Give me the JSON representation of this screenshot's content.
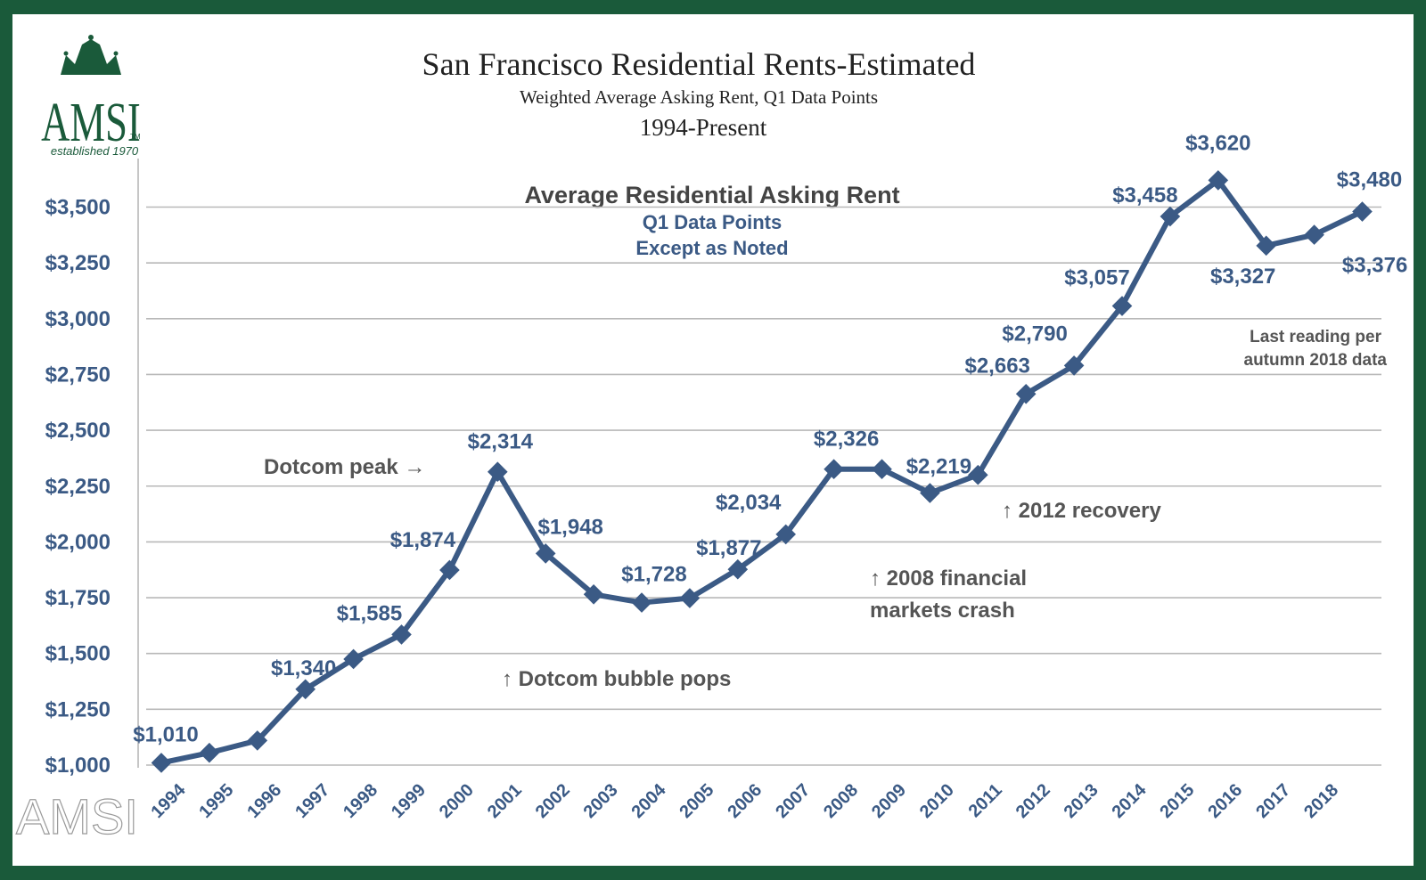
{
  "header": {
    "title": "San Francisco Residential Rents-Estimated",
    "subtitle": "Weighted Average Asking Rent, Q1 Data Points",
    "period": "1994-Present"
  },
  "logo": {
    "text": "AMSI",
    "tm": "TM",
    "tagline": "established 1970",
    "watermark": "AMSI",
    "icon": "crown-icon"
  },
  "colors": {
    "frame": "#1a5a3a",
    "line": "#3b5a85",
    "label": "#3b5a85",
    "annotation": "#555555",
    "grid": "#b8b8b8",
    "logo": "#1a5a3a"
  },
  "chart_data": {
    "type": "line",
    "title": "Average Residential Asking Rent",
    "subtitle": [
      "Q1 Data Points",
      "Except as Noted"
    ],
    "xlabel": "",
    "ylabel": "",
    "ylim": [
      1000,
      3600
    ],
    "grid": true,
    "yticks": [
      {
        "value": 1000,
        "label": "$1,000"
      },
      {
        "value": 1250,
        "label": "$1,250"
      },
      {
        "value": 1500,
        "label": "$1,500"
      },
      {
        "value": 1750,
        "label": "$1,750"
      },
      {
        "value": 2000,
        "label": "$2,000"
      },
      {
        "value": 2250,
        "label": "$2,250"
      },
      {
        "value": 2500,
        "label": "$2,500"
      },
      {
        "value": 2750,
        "label": "$2,750"
      },
      {
        "value": 3000,
        "label": "$3,000"
      },
      {
        "value": 3250,
        "label": "$3,250"
      },
      {
        "value": 3500,
        "label": "$3,500"
      }
    ],
    "categories": [
      "1994",
      "1995",
      "1996",
      "1997",
      "1998",
      "1999",
      "2000",
      "2001",
      "2002",
      "2003",
      "2004",
      "2005",
      "2006",
      "2007",
      "2008",
      "2009",
      "2010",
      "2011",
      "2012",
      "2013",
      "2014",
      "2015",
      "2016",
      "2017",
      "2018"
    ],
    "points": [
      {
        "x": "1994",
        "y": 1010,
        "label": "$1,010"
      },
      {
        "x": "1995",
        "y": 1055,
        "label": ""
      },
      {
        "x": "1996",
        "y": 1110,
        "label": ""
      },
      {
        "x": "1997",
        "y": 1340,
        "label": "$1,340"
      },
      {
        "x": "1998",
        "y": 1475,
        "label": ""
      },
      {
        "x": "1999",
        "y": 1585,
        "label": "$1,585"
      },
      {
        "x": "2000",
        "y": 1874,
        "label": "$1,874"
      },
      {
        "x": "2001",
        "y": 2314,
        "label": "$2,314"
      },
      {
        "x": "2002",
        "y": 1948,
        "label": "$1,948"
      },
      {
        "x": "2003",
        "y": 1765,
        "label": ""
      },
      {
        "x": "2004",
        "y": 1728,
        "label": "$1,728"
      },
      {
        "x": "2005",
        "y": 1748,
        "label": ""
      },
      {
        "x": "2006",
        "y": 1877,
        "label": "$1,877"
      },
      {
        "x": "2007",
        "y": 2034,
        "label": "$2,034"
      },
      {
        "x": "2008",
        "y": 2326,
        "label": "$2,326"
      },
      {
        "x": "2009",
        "y": 2326,
        "label": ""
      },
      {
        "x": "2010",
        "y": 2219,
        "label": "$2,219"
      },
      {
        "x": "2011",
        "y": 2300,
        "label": ""
      },
      {
        "x": "2012",
        "y": 2663,
        "label": "$2,663"
      },
      {
        "x": "2013",
        "y": 2790,
        "label": "$2,790"
      },
      {
        "x": "2014",
        "y": 3057,
        "label": "$3,057"
      },
      {
        "x": "2015",
        "y": 3458,
        "label": "$3,458"
      },
      {
        "x": "2016",
        "y": 3620,
        "label": "$3,620"
      },
      {
        "x": "2017",
        "y": 3327,
        "label": "$3,327"
      },
      {
        "x": "2018",
        "y": 3376,
        "label": "$3,376"
      },
      {
        "x": "2018 (autumn)",
        "y": 3480,
        "label": "$3,480"
      }
    ],
    "annotations": [
      {
        "text": "Dotcom peak →",
        "near": "2001"
      },
      {
        "text": "↑ Dotcom bubble pops",
        "near": "2003"
      },
      {
        "text": "↑ 2008 financial",
        "near": "2008"
      },
      {
        "text": "markets crash",
        "near": "2008"
      },
      {
        "text": "↑ 2012 recovery",
        "near": "2012"
      },
      {
        "text": "Last reading per",
        "near": "2018"
      },
      {
        "text": "autumn 2018 data",
        "near": "2018"
      }
    ]
  }
}
